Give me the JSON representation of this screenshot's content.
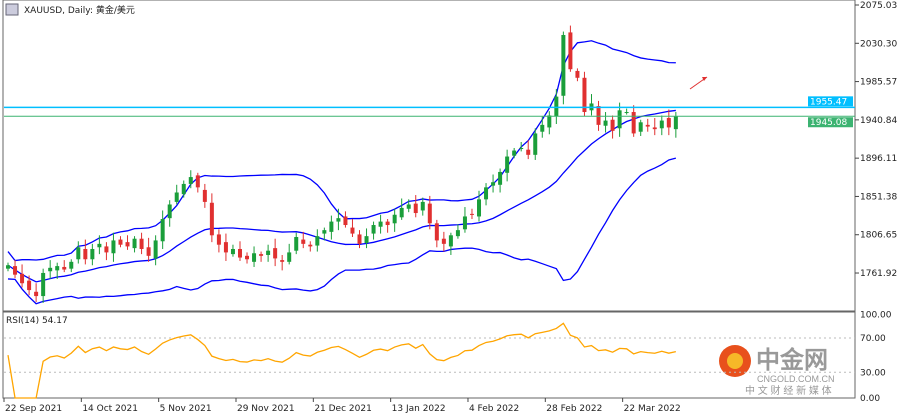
{
  "window": {
    "title": "XAUUSD, Daily:  黄金/美元",
    "icon": "chart-window-icon"
  },
  "chart_data": {
    "type": "candlestick",
    "symbol": "XAUUSD",
    "timeframe": "Daily",
    "closes": [
      1771,
      1760,
      1750,
      1742,
      1735,
      1762,
      1768,
      1770,
      1766,
      1775,
      1792,
      1778,
      1790,
      1796,
      1786,
      1800,
      1795,
      1793,
      1802,
      1790,
      1782,
      1800,
      1825,
      1842,
      1856,
      1866,
      1874,
      1862,
      1845,
      1806,
      1795,
      1786,
      1790,
      1780,
      1778,
      1785,
      1782,
      1788,
      1779,
      1775,
      1786,
      1804,
      1796,
      1793,
      1805,
      1812,
      1822,
      1826,
      1818,
      1808,
      1796,
      1805,
      1818,
      1822,
      1818,
      1830,
      1838,
      1842,
      1832,
      1845,
      1820,
      1800,
      1796,
      1806,
      1812,
      1828,
      1830,
      1848,
      1862,
      1868,
      1880,
      1898,
      1905,
      1908,
      1900,
      1925,
      1935,
      1946,
      1968,
      2040,
      2000,
      1990,
      1950,
      1960,
      1935,
      1940,
      1928,
      1952,
      1950,
      1925,
      1938,
      1933,
      1930,
      1940,
      1932,
      1945.08
    ],
    "indicators": {
      "bollinger": {
        "period": 20,
        "deviations": 2
      },
      "rsi": {
        "period": 14,
        "label": "RSI(14) 54.17",
        "levels": [
          70,
          30
        ]
      }
    },
    "ylim": [
      1740,
      2080
    ],
    "y_ticks": [
      "2075.03",
      "2030.30",
      "1985.57",
      "1940.84",
      "1896.11",
      "1851.38",
      "1806.65",
      "1761.92"
    ],
    "rsi_ticks": [
      "100.00",
      "70.00",
      "30.00",
      "0.00"
    ],
    "x_ticks": [
      "22 Sep 2021",
      "14 Oct 2021",
      "5 Nov 2021",
      "29 Nov 2021",
      "21 Dec 2021",
      "13 Jan 2022",
      "4 Feb 2022",
      "28 Feb 2022",
      "22 Mar 2022"
    ],
    "x_tick_index": [
      0,
      11,
      22,
      33,
      44,
      55,
      66,
      77,
      88
    ],
    "hlines": [
      {
        "value": 1955.47,
        "label": "1955.47",
        "color": "#00bfff"
      },
      {
        "value": 1945.08,
        "label": "1945.08",
        "color": "#3cb371"
      }
    ],
    "colors": {
      "up": "#1a9e3a",
      "down": "#e03030",
      "bands": "#0000ff",
      "rsi": "#ffa500"
    }
  },
  "watermark": {
    "brand": "中金网",
    "domain": "CNGOLD.COM.CN",
    "slogan": "中 文 财 经 新 媒 体"
  }
}
